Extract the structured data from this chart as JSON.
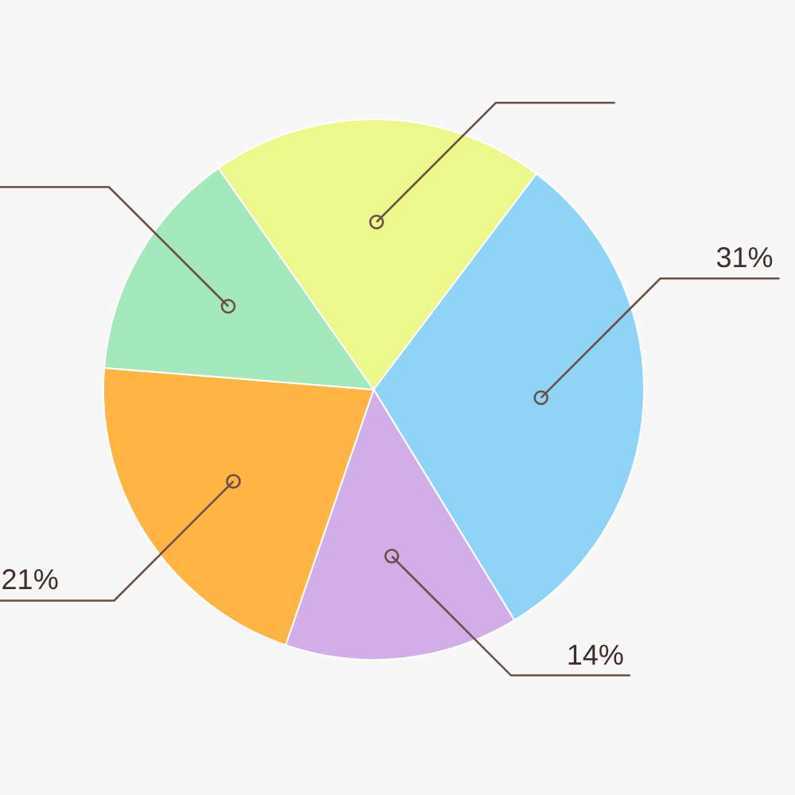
{
  "chart_data": {
    "type": "pie",
    "categories": [
      null,
      null,
      null,
      null,
      null
    ],
    "values": [
      31,
      14,
      21,
      14,
      20
    ],
    "colors": [
      "#8fd4f6",
      "#d2aee8",
      "#ffb443",
      "#a3e9bb",
      "#ecf78c"
    ],
    "value_labels": [
      "31%",
      "14%",
      "21%",
      null,
      null
    ]
  }
}
